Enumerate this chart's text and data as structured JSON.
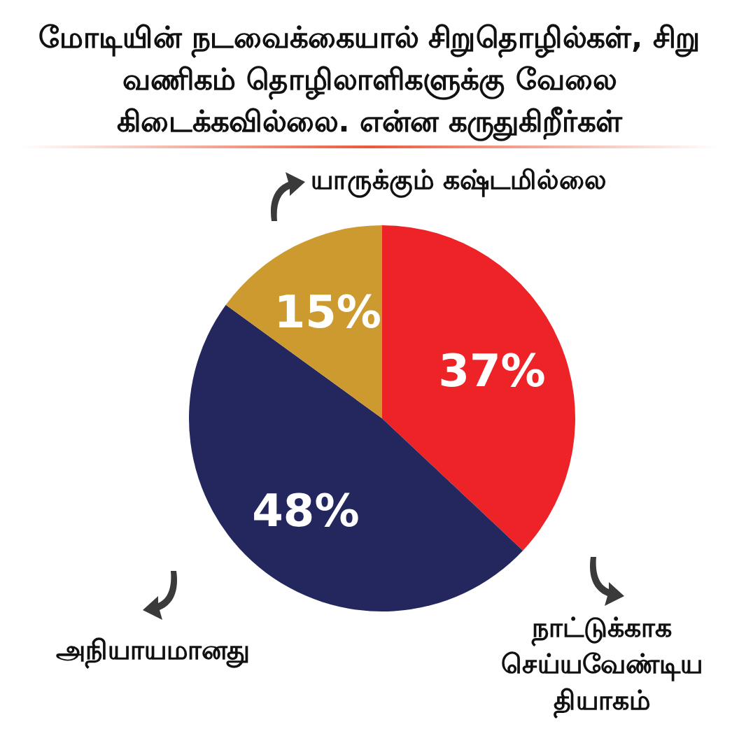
{
  "chart_data": {
    "type": "pie",
    "title": "மோடியின் நடவைக்கையால் சிறுதொழில்கள், சிறு வணிகம் தொழிலாளிகளுக்கு வேலை கிடைக்கவில்லை. என்ன கருதுகிறீர்கள்",
    "categories": [
      "நாட்டுக்காக செய்யவேண்டிய தியாகம்",
      "அநியாயமானது",
      "யாருக்கும் கஷ்டமில்லை"
    ],
    "values": [
      37,
      48,
      15
    ],
    "colors": [
      "#ee2327",
      "#23275e",
      "#cd9a2f"
    ],
    "value_labels": [
      "37%",
      "48%",
      "15%"
    ]
  }
}
